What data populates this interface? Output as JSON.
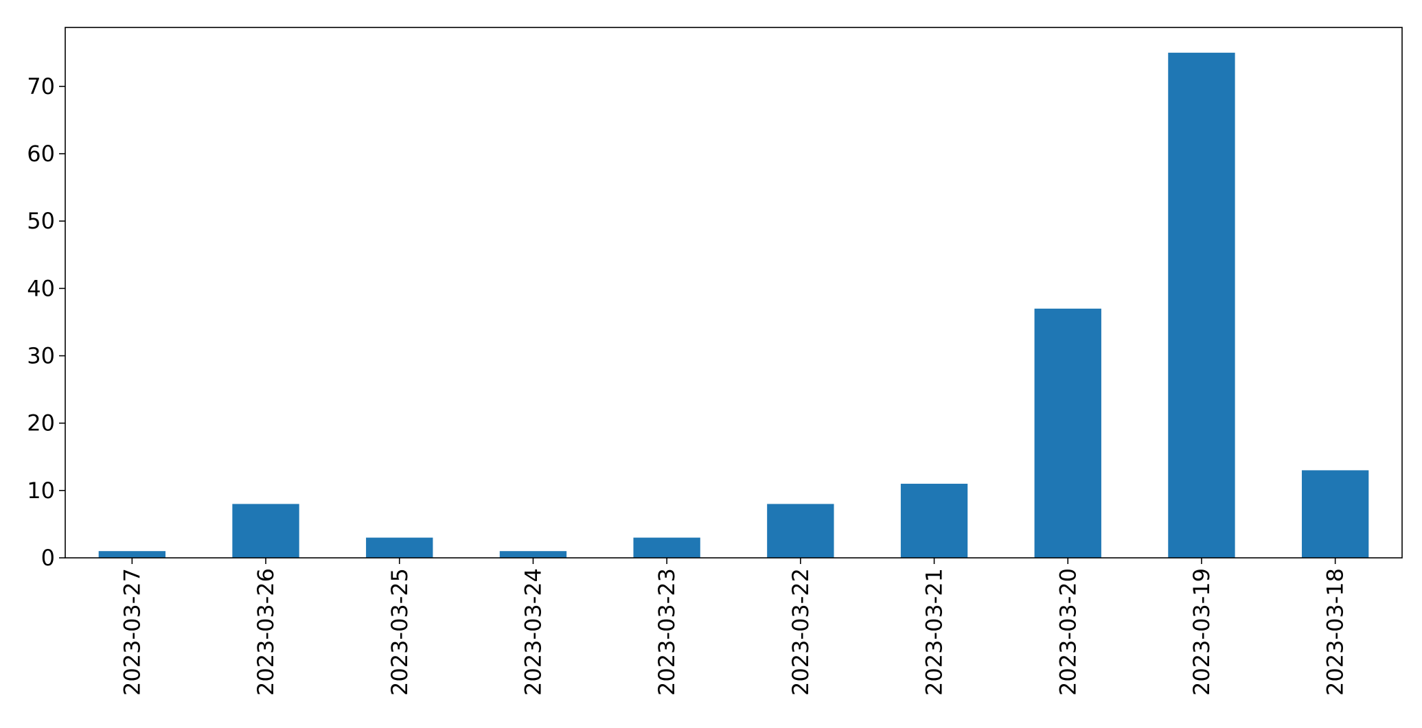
{
  "chart_data": {
    "type": "bar",
    "title": "",
    "xlabel": "",
    "ylabel": "",
    "categories": [
      "2023-03-27",
      "2023-03-26",
      "2023-03-25",
      "2023-03-24",
      "2023-03-23",
      "2023-03-22",
      "2023-03-21",
      "2023-03-20",
      "2023-03-19",
      "2023-03-18"
    ],
    "values": [
      1,
      8,
      3,
      1,
      3,
      8,
      11,
      37,
      75,
      13
    ],
    "ylim": [
      0,
      78.75
    ],
    "yticks": [
      0,
      10,
      20,
      30,
      40,
      50,
      60,
      70
    ],
    "grid": false,
    "legend": "none",
    "bar_color": "#1f77b4",
    "tick_label_rotation": "vertical"
  }
}
